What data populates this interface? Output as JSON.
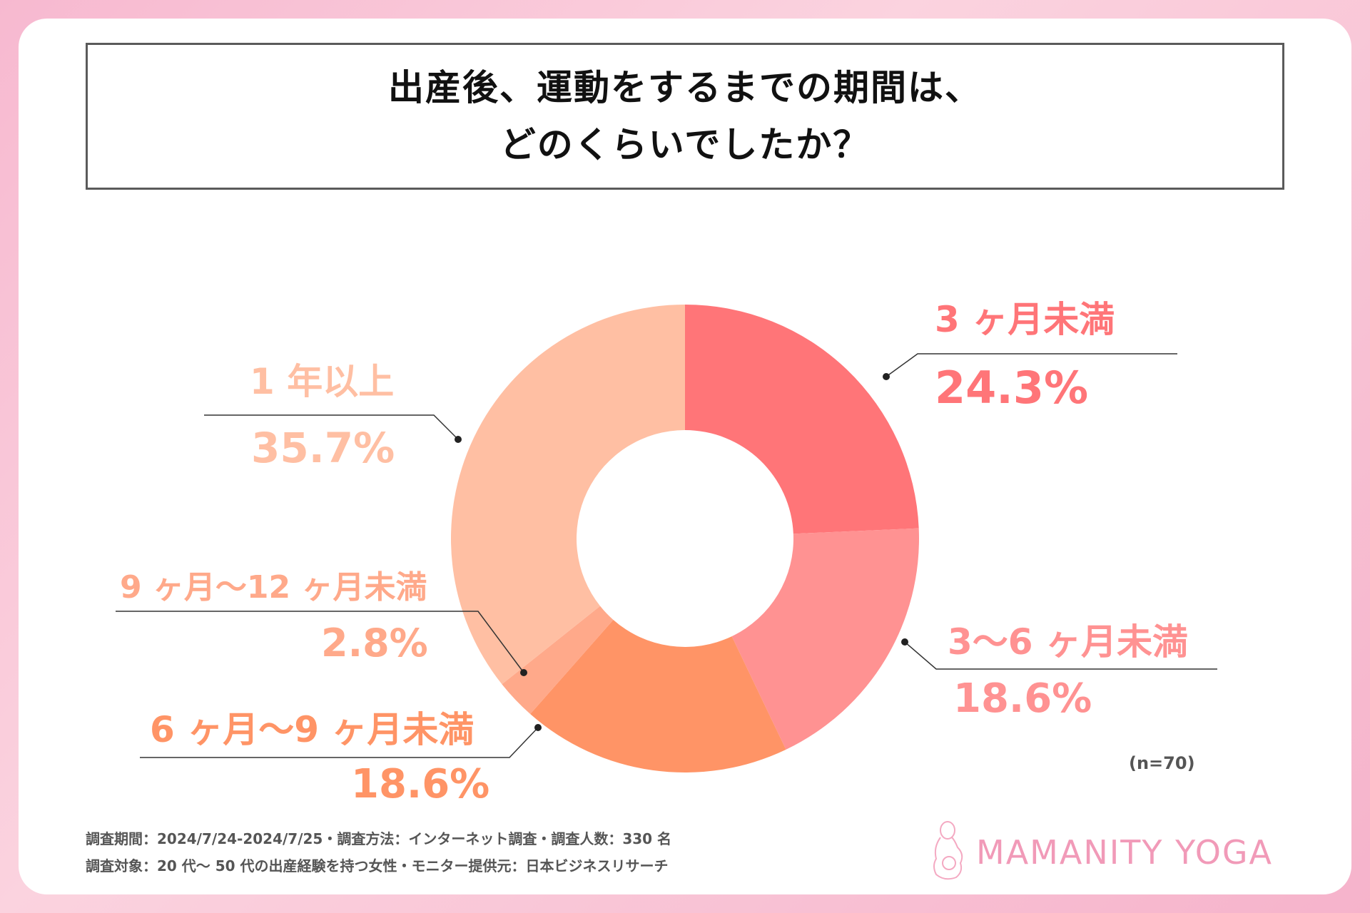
{
  "title": {
    "line1": "出産後、運動をするまでの期間は、",
    "line2": "どのくらいでしたか？"
  },
  "chart_data": {
    "type": "pie",
    "style": "donut",
    "title": "出産後、運動をするまでの期間は、どのくらいでしたか？",
    "categories": [
      "3 ヶ月未満",
      "3〜6 ヶ月未満",
      "6 ヶ月〜9 ヶ月未満",
      "9 ヶ月〜12 ヶ月未満",
      "1 年以上"
    ],
    "values": [
      24.3,
      18.6,
      18.6,
      2.8,
      35.7
    ],
    "value_labels": [
      "24.3%",
      "18.6%",
      "18.6%",
      "2.8%",
      "35.7%"
    ],
    "colors": [
      "#ff7578",
      "#ff9292",
      "#ff9466",
      "#ffa98a",
      "#ffbfa3"
    ],
    "sample_size": "(n=70)"
  },
  "footer": {
    "line1": "調査期間：2024/7/24-2024/7/25・調査方法：インターネット調査・調査人数：330 名",
    "line2": "調査対象：20 代〜 50 代の出産経験を持つ女性・モニター提供元：日本ビジネスリサーチ"
  },
  "logo": {
    "text": "MAMANITY YOGA",
    "icon": "mother-silhouette-icon",
    "color": "#f19ab8"
  }
}
